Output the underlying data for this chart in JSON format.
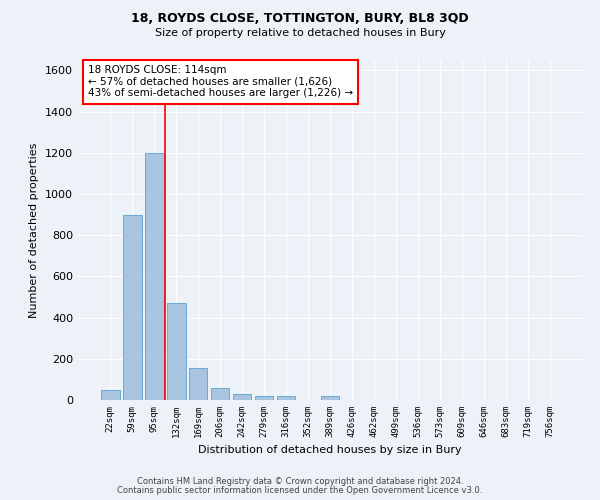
{
  "title_line1": "18, ROYDS CLOSE, TOTTINGTON, BURY, BL8 3QD",
  "title_line2": "Size of property relative to detached houses in Bury",
  "xlabel": "Distribution of detached houses by size in Bury",
  "ylabel": "Number of detached properties",
  "categories": [
    "22sqm",
    "59sqm",
    "95sqm",
    "132sqm",
    "169sqm",
    "206sqm",
    "242sqm",
    "279sqm",
    "316sqm",
    "352sqm",
    "389sqm",
    "426sqm",
    "462sqm",
    "499sqm",
    "536sqm",
    "573sqm",
    "609sqm",
    "646sqm",
    "683sqm",
    "719sqm",
    "756sqm"
  ],
  "values": [
    50,
    900,
    1200,
    470,
    155,
    60,
    30,
    20,
    20,
    0,
    20,
    0,
    0,
    0,
    0,
    0,
    0,
    0,
    0,
    0,
    0
  ],
  "bar_color": "#a8c4e0",
  "bar_edge_color": "#6aaad4",
  "vline_color": "red",
  "vline_x": 2.5,
  "annotation_text": "18 ROYDS CLOSE: 114sqm\n← 57% of detached houses are smaller (1,626)\n43% of semi-detached houses are larger (1,226) →",
  "ylim": [
    0,
    1650
  ],
  "yticks": [
    0,
    200,
    400,
    600,
    800,
    1000,
    1200,
    1400,
    1600
  ],
  "bg_color": "#edf2f8",
  "grid_color": "white",
  "footer_line1": "Contains HM Land Registry data © Crown copyright and database right 2024.",
  "footer_line2": "Contains public sector information licensed under the Open Government Licence v3.0."
}
